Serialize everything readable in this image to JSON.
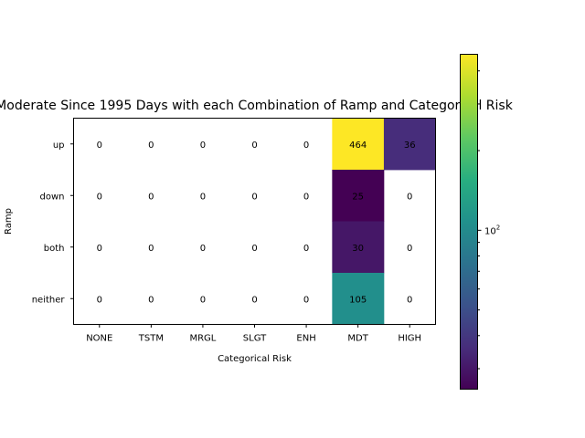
{
  "chart_data": {
    "type": "heatmap",
    "title": "Moderate Since 1995 Days with each Combination of Ramp and Categorical Risk",
    "xlabel": "Categorical Risk",
    "ylabel": "Ramp",
    "x_categories": [
      "NONE",
      "TSTM",
      "MRGL",
      "SLGT",
      "ENH",
      "MDT",
      "HIGH"
    ],
    "y_categories": [
      "up",
      "down",
      "both",
      "neither"
    ],
    "values": [
      [
        0,
        0,
        0,
        0,
        0,
        464,
        36
      ],
      [
        0,
        0,
        0,
        0,
        0,
        25,
        0
      ],
      [
        0,
        0,
        0,
        0,
        0,
        30,
        0
      ],
      [
        0,
        0,
        0,
        0,
        0,
        105,
        0
      ]
    ],
    "zero_cells": "blank (masked under log color scale)",
    "colormap": "viridis",
    "color_scale": "log",
    "color_range": [
      25,
      464
    ],
    "colorbar": {
      "major_tick_labels": [
        {
          "value": 100,
          "label": "10^2"
        }
      ],
      "minor_ticks": [
        30,
        40,
        50,
        60,
        70,
        80,
        90,
        200,
        300,
        400
      ]
    },
    "annotation_color": "#000000"
  }
}
